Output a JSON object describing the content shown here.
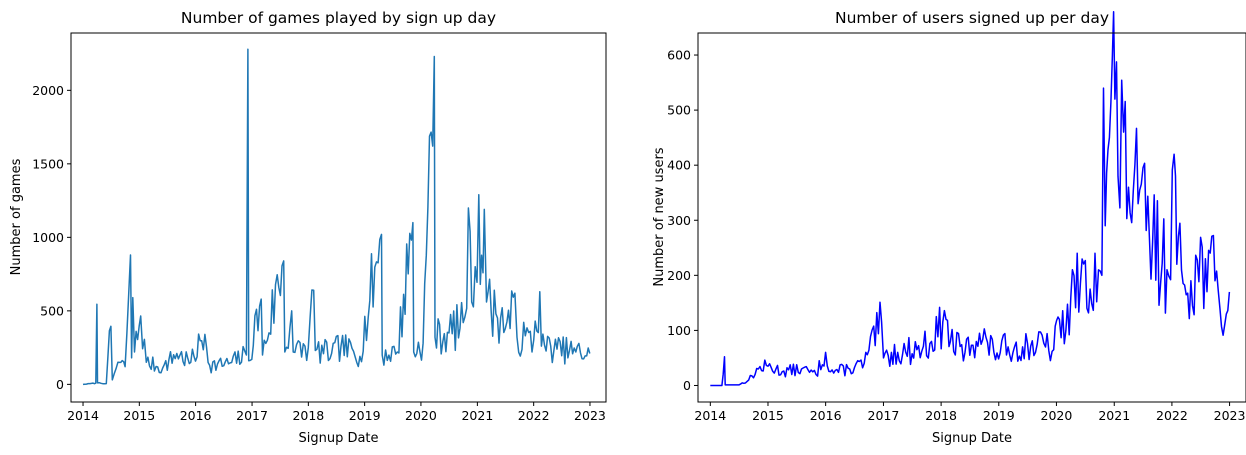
{
  "chart_data": [
    {
      "type": "line",
      "title": "Number of games played by sign up day",
      "xlabel": "Signup Date",
      "ylabel": "Number of games",
      "x_range": [
        "2013-10-15",
        "2023-04-15"
      ],
      "ylim": [
        -120,
        2390
      ],
      "x_ticks": [
        "2014",
        "2015",
        "2016",
        "2017",
        "2018",
        "2019",
        "2020",
        "2021",
        "2022",
        "2023"
      ],
      "y_ticks": [
        0,
        500,
        1000,
        1500,
        2000
      ],
      "grid": false,
      "color": "#1f77b4",
      "noise_seed": 7,
      "series": [
        {
          "points": [
            [
              "2014-01-01",
              0
            ],
            [
              "2014-02-15",
              5
            ],
            [
              "2014-03-25",
              8
            ],
            [
              "2014-04-01",
              545
            ],
            [
              "2014-04-05",
              10
            ],
            [
              "2014-06-01",
              5
            ],
            [
              "2014-07-01",
              395
            ],
            [
              "2014-07-10",
              30
            ],
            [
              "2014-08-15",
              150
            ],
            [
              "2014-10-01",
              120
            ],
            [
              "2014-11-05",
              880
            ],
            [
              "2014-11-12",
              180
            ],
            [
              "2014-11-20",
              590
            ],
            [
              "2014-12-01",
              220
            ],
            [
              "2015-01-10",
              465
            ],
            [
              "2015-02-15",
              150
            ],
            [
              "2015-06-01",
              110
            ],
            [
              "2015-09-01",
              210
            ],
            [
              "2015-12-01",
              150
            ],
            [
              "2016-03-01",
              340
            ],
            [
              "2016-04-01",
              130
            ],
            [
              "2016-08-01",
              140
            ],
            [
              "2016-11-25",
              200
            ],
            [
              "2016-12-05",
              2280
            ],
            [
              "2016-12-10",
              160
            ],
            [
              "2017-03-01",
              580
            ],
            [
              "2017-03-10",
              200
            ],
            [
              "2017-07-25",
              840
            ],
            [
              "2017-08-01",
              220
            ],
            [
              "2017-09-15",
              500
            ],
            [
              "2017-09-25",
              220
            ],
            [
              "2018-01-01",
              250
            ],
            [
              "2018-02-05",
              640
            ],
            [
              "2018-02-15",
              230
            ],
            [
              "2018-06-01",
              210
            ],
            [
              "2018-08-01",
              260
            ],
            [
              "2018-12-01",
              190
            ],
            [
              "2019-04-20",
              1020
            ],
            [
              "2019-04-25",
              200
            ],
            [
              "2019-08-01",
              220
            ],
            [
              "2019-11-10",
              1100
            ],
            [
              "2019-11-15",
              220
            ],
            [
              "2020-01-15",
              280
            ],
            [
              "2020-03-28",
              2230
            ],
            [
              "2020-04-01",
              320
            ],
            [
              "2020-07-01",
              350
            ],
            [
              "2020-10-01",
              420
            ],
            [
              "2020-11-15",
              1040
            ],
            [
              "2020-11-25",
              560
            ],
            [
              "2021-01-10",
              1290
            ],
            [
              "2021-01-20",
              680
            ],
            [
              "2021-02-15",
              1190
            ],
            [
              "2021-03-01",
              560
            ],
            [
              "2021-05-01",
              480
            ],
            [
              "2021-08-01",
              380
            ],
            [
              "2021-09-01",
              620
            ],
            [
              "2021-09-15",
              320
            ],
            [
              "2022-01-01",
              300
            ],
            [
              "2022-02-10",
              630
            ],
            [
              "2022-02-20",
              260
            ],
            [
              "2022-06-01",
              240
            ],
            [
              "2022-10-01",
              220
            ],
            [
              "2022-12-31",
              210
            ]
          ]
        }
      ]
    },
    {
      "type": "line",
      "title": "Number of users signed up per day",
      "xlabel": "Signup Date",
      "ylabel": "Number of new users",
      "x_range": [
        "2013-10-15",
        "2023-04-15"
      ],
      "ylim": [
        -30,
        640
      ],
      "x_ticks": [
        "2014",
        "2015",
        "2016",
        "2017",
        "2018",
        "2019",
        "2020",
        "2021",
        "2022",
        "2023"
      ],
      "y_ticks": [
        0,
        100,
        200,
        300,
        400,
        500,
        600
      ],
      "grid": false,
      "color": "#0000ff",
      "noise_seed": 13,
      "series": [
        {
          "points": [
            [
              "2014-01-01",
              0
            ],
            [
              "2014-03-15",
              0
            ],
            [
              "2014-04-01",
              52
            ],
            [
              "2014-04-05",
              1
            ],
            [
              "2014-07-01",
              1
            ],
            [
              "2014-09-01",
              10
            ],
            [
              "2014-11-01",
              30
            ],
            [
              "2015-01-01",
              35
            ],
            [
              "2015-04-01",
              25
            ],
            [
              "2015-08-01",
              30
            ],
            [
              "2015-11-01",
              20
            ],
            [
              "2016-01-01",
              60
            ],
            [
              "2016-02-01",
              25
            ],
            [
              "2016-06-01",
              30
            ],
            [
              "2016-09-01",
              40
            ],
            [
              "2016-12-20",
              115
            ],
            [
              "2017-01-01",
              50
            ],
            [
              "2017-04-01",
              60
            ],
            [
              "2017-08-01",
              65
            ],
            [
              "2017-11-01",
              80
            ],
            [
              "2018-02-01",
              120
            ],
            [
              "2018-03-01",
              80
            ],
            [
              "2018-06-01",
              60
            ],
            [
              "2018-09-01",
              95
            ],
            [
              "2018-12-01",
              60
            ],
            [
              "2019-03-01",
              70
            ],
            [
              "2019-06-01",
              70
            ],
            [
              "2019-09-01",
              75
            ],
            [
              "2019-12-15",
              65
            ],
            [
              "2020-01-20",
              120
            ],
            [
              "2020-03-01",
              100
            ],
            [
              "2020-04-01",
              160
            ],
            [
              "2020-06-01",
              185
            ],
            [
              "2020-08-01",
              175
            ],
            [
              "2020-09-01",
              240
            ],
            [
              "2020-10-15",
              200
            ],
            [
              "2020-10-25",
              540
            ],
            [
              "2020-11-05",
              290
            ],
            [
              "2020-12-01",
              450
            ],
            [
              "2020-12-20",
              600
            ],
            [
              "2021-01-05",
              520
            ],
            [
              "2021-01-25",
              380
            ],
            [
              "2021-03-01",
              460
            ],
            [
              "2021-04-01",
              360
            ],
            [
              "2021-06-01",
              330
            ],
            [
              "2021-09-01",
              260
            ],
            [
              "2021-12-01",
              210
            ],
            [
              "2022-01-15",
              420
            ],
            [
              "2022-02-01",
              220
            ],
            [
              "2022-05-01",
              190
            ],
            [
              "2022-08-01",
              230
            ],
            [
              "2022-10-01",
              190
            ],
            [
              "2022-12-01",
              110
            ],
            [
              "2022-12-31",
              170
            ]
          ]
        }
      ]
    }
  ]
}
